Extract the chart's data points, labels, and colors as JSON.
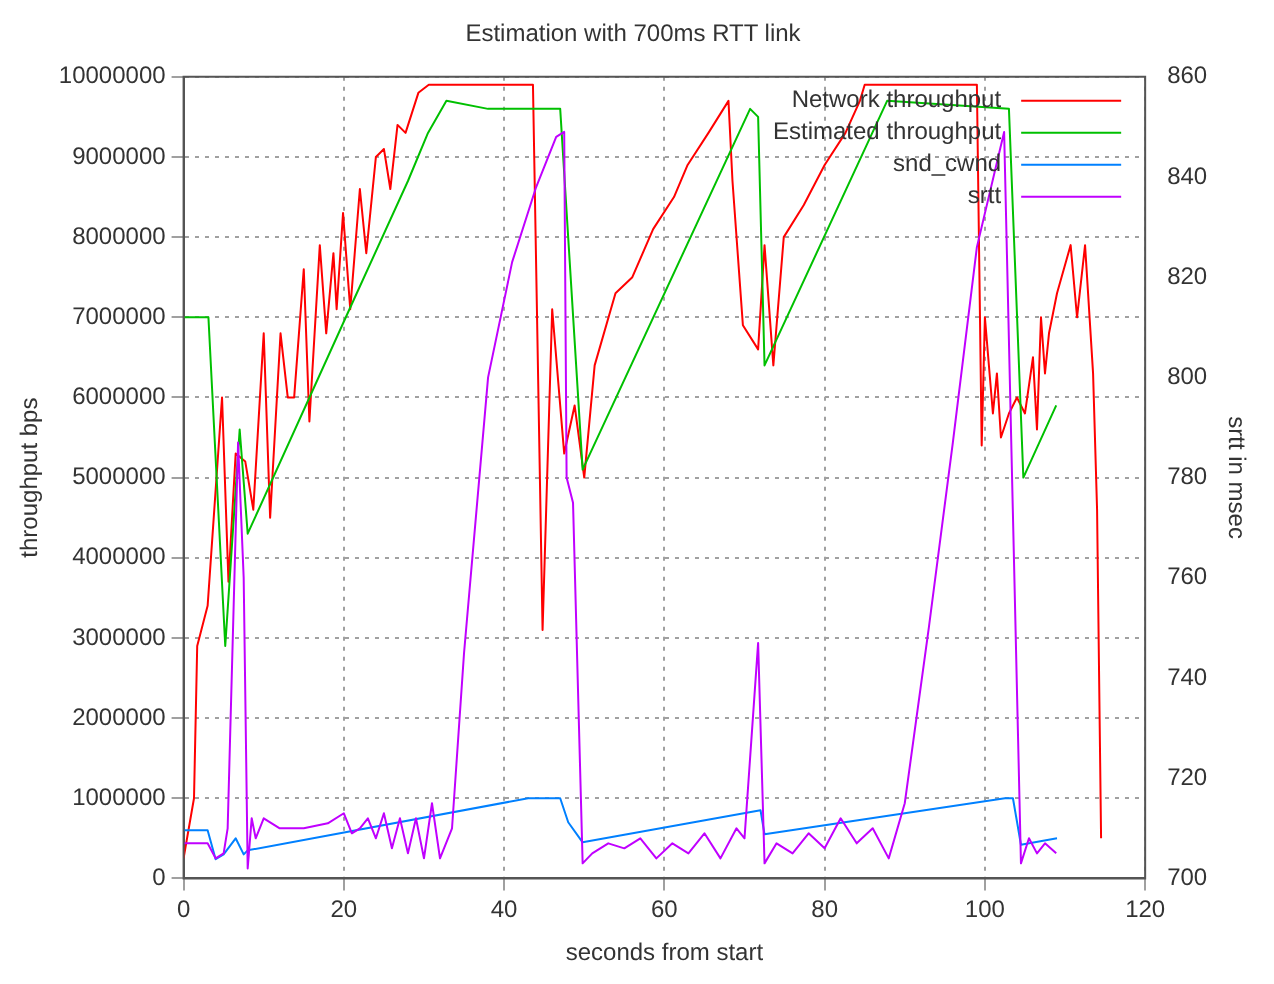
{
  "chart_data": {
    "type": "line",
    "title": "Estimation with 700ms RTT link",
    "xlabel": "seconds from start",
    "ylabel": "throughput bps",
    "y2label": "srtt in msec",
    "xlim": [
      0,
      120
    ],
    "xticks": [
      0,
      20,
      40,
      60,
      80,
      100,
      120
    ],
    "ylim": [
      0,
      10000000
    ],
    "yticks": [
      0,
      1000000,
      2000000,
      3000000,
      4000000,
      5000000,
      6000000,
      7000000,
      8000000,
      9000000,
      10000000
    ],
    "y2lim": [
      700,
      860
    ],
    "y2ticks": [
      700,
      720,
      740,
      760,
      780,
      800,
      820,
      840,
      860
    ],
    "grid": true,
    "legend": "top right",
    "marker": "none",
    "line_style": "solid",
    "series": [
      {
        "name": "Network throughput",
        "color": "#ff0000",
        "x": [
          0,
          1.3,
          1.7,
          3,
          4.8,
          5.6,
          6.5,
          7.7,
          8.7,
          10,
          10.8,
          12.1,
          13,
          13.8,
          15,
          15.7,
          17,
          17.8,
          18.7,
          19.1,
          19.9,
          20.8,
          22,
          22.8,
          24,
          25,
          25.8,
          26.7,
          27.7,
          29.3,
          30.6,
          43.6,
          44.8,
          46,
          47.5,
          48.8,
          50,
          51.3,
          53.9,
          56,
          58.6,
          61.2,
          62.9,
          65.5,
          68,
          68.5,
          69.8,
          71.7,
          72.5,
          73.6,
          74.9,
          77.4,
          80,
          82.6,
          84.4,
          85,
          99,
          99.6,
          100,
          101,
          101.5,
          102,
          103,
          104,
          105,
          106,
          106.5,
          107,
          107.5,
          108,
          109,
          110.7,
          111.5,
          112.5,
          113.5,
          114,
          114.5
        ],
        "values": [
          250000,
          1000000,
          2900000,
          3400000,
          6000000,
          3700000,
          5300000,
          5200000,
          4600000,
          6800000,
          4500000,
          6800000,
          6000000,
          6000000,
          7600000,
          5700000,
          7900000,
          6800000,
          7800000,
          7100000,
          8300000,
          7100000,
          8600000,
          7800000,
          9000000,
          9100000,
          8600000,
          9400000,
          9300000,
          9800000,
          9900000,
          9900000,
          3100000,
          7100000,
          5300000,
          5900000,
          5000000,
          6400000,
          7300000,
          7500000,
          8100000,
          8500000,
          8900000,
          9300000,
          9700000,
          8700000,
          6900000,
          6600000,
          7900000,
          6400000,
          8000000,
          8400000,
          8900000,
          9300000,
          9700000,
          9900000,
          9900000,
          5400000,
          7000000,
          5800000,
          6300000,
          5500000,
          5800000,
          6000000,
          5800000,
          6500000,
          5600000,
          7000000,
          6300000,
          6800000,
          7300000,
          7900000,
          7000000,
          7900000,
          6300000,
          4600000,
          500000
        ]
      },
      {
        "name": "Estimated throughput",
        "color": "#00c000",
        "x": [
          0,
          3.1,
          5.2,
          7,
          8,
          20.7,
          28,
          30.5,
          32.8,
          38,
          47,
          49.8,
          70.7,
          71.7,
          72.5,
          87.8,
          103,
          104.8,
          108.9
        ],
        "values": [
          7000000,
          7000000,
          2900000,
          5600000,
          4300000,
          7100000,
          8700000,
          9300000,
          9700000,
          9600000,
          9600000,
          5100000,
          9600000,
          9500000,
          6400000,
          9700000,
          9600000,
          5000000,
          5900000
        ]
      },
      {
        "name": "snd_cwnd",
        "color": "#0080ff",
        "x": [
          0,
          3,
          4,
          5,
          6.5,
          7.5,
          8,
          43,
          47,
          48,
          49.8,
          72,
          72.5,
          102.5,
          103.5,
          104.5,
          109
        ],
        "values": [
          600000,
          600000,
          240000,
          300000,
          500000,
          300000,
          350000,
          1000000,
          1000000,
          700000,
          450000,
          850000,
          550000,
          1000000,
          1000000,
          420000,
          500000
        ]
      },
      {
        "name": "srtt",
        "color": "#c000ff",
        "axis": "y2",
        "x": [
          0,
          3,
          4,
          5,
          5.5,
          6.8,
          7.5,
          8,
          8.5,
          9,
          10,
          12,
          15,
          18,
          20,
          21,
          22,
          23,
          24,
          25,
          26,
          27,
          28,
          29,
          30,
          31,
          32,
          33.5,
          35,
          38,
          41,
          44,
          46.5,
          47.5,
          47.8,
          48.6,
          49.8,
          51,
          53,
          55,
          57,
          59,
          61,
          63,
          65,
          67,
          69,
          70,
          71.7,
          72.5,
          74,
          76,
          78,
          80,
          82,
          84,
          86,
          88,
          90,
          93,
          96,
          99,
          102.4,
          104.5,
          105.5,
          106.5,
          107.5,
          108.9
        ],
        "values": [
          707,
          707,
          704,
          705,
          710,
          787,
          760,
          702,
          712,
          708,
          712,
          710,
          710,
          711,
          713,
          709,
          710,
          712,
          708,
          713,
          706,
          712,
          705,
          712,
          704,
          715,
          704,
          710,
          745,
          800,
          823,
          838,
          848,
          849,
          780,
          775,
          703,
          705,
          707,
          706,
          708,
          704,
          707,
          705,
          709,
          704,
          710,
          708,
          747,
          703,
          707,
          705,
          709,
          706,
          712,
          707,
          710,
          704,
          715,
          750,
          787,
          826,
          849,
          703,
          708,
          705,
          707,
          705
        ]
      }
    ]
  }
}
